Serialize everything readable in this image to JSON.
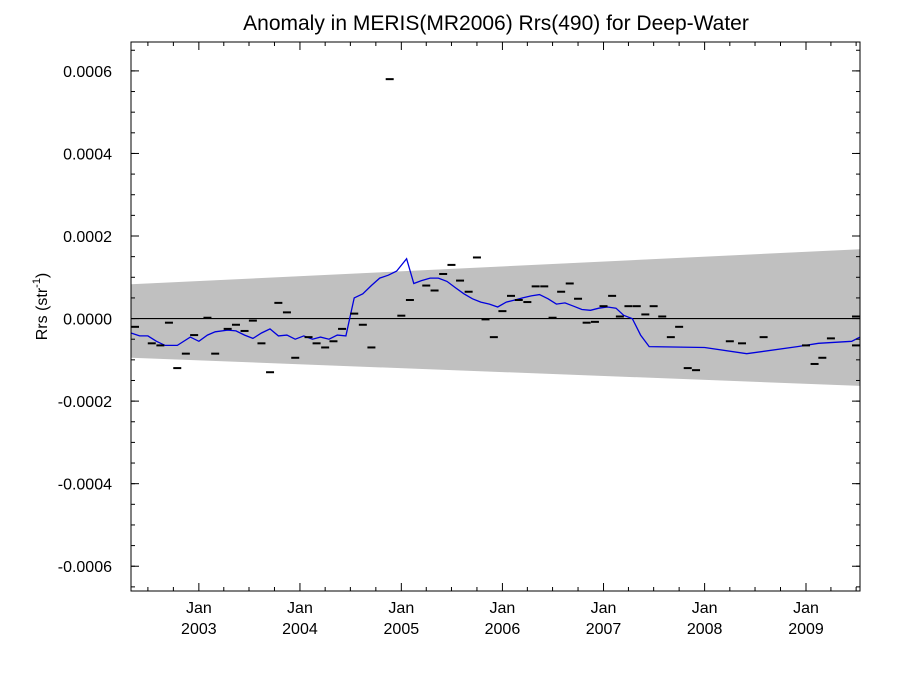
{
  "chart_data": {
    "type": "scatter",
    "title": "Anomaly in MERIS(MR2006) Rrs(490) for Deep-Water",
    "ylabel": {
      "main": "Rrs (str",
      "sup": "-1",
      "tail": ")"
    },
    "xlabel": "",
    "xlim": [
      "2002-05-01",
      "2009-07-15"
    ],
    "ylim": [
      -0.00066,
      0.00067
    ],
    "y_ticks": [
      -0.0006,
      -0.0004,
      -0.0002,
      0.0,
      0.0002,
      0.0004,
      0.0006
    ],
    "y_tick_labels": [
      "-0.0006",
      "-0.0004",
      "-0.0002",
      "0.0000",
      "0.0002",
      "0.0004",
      "0.0006"
    ],
    "x_ticks": [
      {
        "date": "2003-01-01",
        "month": "Jan",
        "year": "2003"
      },
      {
        "date": "2004-01-01",
        "month": "Jan",
        "year": "2004"
      },
      {
        "date": "2005-01-01",
        "month": "Jan",
        "year": "2005"
      },
      {
        "date": "2006-01-01",
        "month": "Jan",
        "year": "2006"
      },
      {
        "date": "2007-01-01",
        "month": "Jan",
        "year": "2007"
      },
      {
        "date": "2008-01-01",
        "month": "Jan",
        "year": "2008"
      },
      {
        "date": "2009-01-01",
        "month": "Jan",
        "year": "2009"
      }
    ],
    "x_minor_ticks_per_year": 4,
    "band": {
      "color": "#c0c0c0",
      "points": [
        {
          "x": "2002-05-01",
          "upper": 8.3e-05,
          "lower": -9.5e-05
        },
        {
          "x": "2009-07-15",
          "upper": 0.000168,
          "lower": -0.000163
        }
      ]
    },
    "zero_line": {
      "y": 0.0,
      "color": "#000000"
    },
    "series": [
      {
        "kind": "markers",
        "color": "#000000",
        "points": [
          {
            "x": "2002-05-01",
            "y": -2e-05
          },
          {
            "x": "2002-07-15",
            "y": -6e-05
          },
          {
            "x": "2002-08-15",
            "y": -6.5e-05
          },
          {
            "x": "2002-09-15",
            "y": -1e-05
          },
          {
            "x": "2002-10-15",
            "y": -0.00012
          },
          {
            "x": "2002-11-15",
            "y": -8.5e-05
          },
          {
            "x": "2002-12-15",
            "y": -4e-05
          },
          {
            "x": "2003-02-01",
            "y": 2e-06
          },
          {
            "x": "2003-03-01",
            "y": -8.5e-05
          },
          {
            "x": "2003-04-15",
            "y": -2.5e-05
          },
          {
            "x": "2003-05-15",
            "y": -1.5e-05
          },
          {
            "x": "2003-06-15",
            "y": -3e-05
          },
          {
            "x": "2003-07-15",
            "y": -5e-06
          },
          {
            "x": "2003-08-15",
            "y": -6e-05
          },
          {
            "x": "2003-09-15",
            "y": -0.00013
          },
          {
            "x": "2003-10-15",
            "y": 3.8e-05
          },
          {
            "x": "2003-11-15",
            "y": 1.5e-05
          },
          {
            "x": "2003-12-15",
            "y": -9.5e-05
          },
          {
            "x": "2004-02-01",
            "y": -4.5e-05
          },
          {
            "x": "2004-03-01",
            "y": -6e-05
          },
          {
            "x": "2004-04-01",
            "y": -7e-05
          },
          {
            "x": "2004-05-01",
            "y": -5.5e-05
          },
          {
            "x": "2004-06-01",
            "y": -2.5e-05
          },
          {
            "x": "2004-07-15",
            "y": 1.2e-05
          },
          {
            "x": "2004-08-15",
            "y": -1.5e-05
          },
          {
            "x": "2004-09-15",
            "y": -7e-05
          },
          {
            "x": "2004-11-20",
            "y": 0.00058
          },
          {
            "x": "2005-01-01",
            "y": 7e-06
          },
          {
            "x": "2005-02-01",
            "y": 4.5e-05
          },
          {
            "x": "2005-04-01",
            "y": 8e-05
          },
          {
            "x": "2005-05-01",
            "y": 6.8e-05
          },
          {
            "x": "2005-06-01",
            "y": 0.000108
          },
          {
            "x": "2005-07-01",
            "y": 0.00013
          },
          {
            "x": "2005-08-01",
            "y": 9.2e-05
          },
          {
            "x": "2005-09-01",
            "y": 6.5e-05
          },
          {
            "x": "2005-10-01",
            "y": 0.000148
          },
          {
            "x": "2005-11-01",
            "y": -2e-06
          },
          {
            "x": "2005-12-01",
            "y": -4.5e-05
          },
          {
            "x": "2006-01-01",
            "y": 1.8e-05
          },
          {
            "x": "2006-02-01",
            "y": 5.5e-05
          },
          {
            "x": "2006-03-01",
            "y": 4.5e-05
          },
          {
            "x": "2006-04-01",
            "y": 4e-05
          },
          {
            "x": "2006-05-01",
            "y": 7.8e-05
          },
          {
            "x": "2006-06-01",
            "y": 7.8e-05
          },
          {
            "x": "2006-07-01",
            "y": 2e-06
          },
          {
            "x": "2006-08-01",
            "y": 6.5e-05
          },
          {
            "x": "2006-09-01",
            "y": 8.5e-05
          },
          {
            "x": "2006-10-01",
            "y": 4.8e-05
          },
          {
            "x": "2006-11-01",
            "y": -1e-05
          },
          {
            "x": "2006-12-01",
            "y": -8e-06
          },
          {
            "x": "2007-01-01",
            "y": 3e-05
          },
          {
            "x": "2007-02-01",
            "y": 5.5e-05
          },
          {
            "x": "2007-03-01",
            "y": 5e-06
          },
          {
            "x": "2007-04-01",
            "y": 3e-05
          },
          {
            "x": "2007-05-01",
            "y": 3e-05
          },
          {
            "x": "2007-06-01",
            "y": 1e-05
          },
          {
            "x": "2007-07-01",
            "y": 3e-05
          },
          {
            "x": "2007-08-01",
            "y": 5e-06
          },
          {
            "x": "2007-09-01",
            "y": -4.5e-05
          },
          {
            "x": "2007-10-01",
            "y": -2e-05
          },
          {
            "x": "2007-11-01",
            "y": -0.00012
          },
          {
            "x": "2007-12-01",
            "y": -0.000125
          },
          {
            "x": "2008-04-01",
            "y": -5.5e-05
          },
          {
            "x": "2008-05-15",
            "y": -6e-05
          },
          {
            "x": "2008-08-01",
            "y": -4.5e-05
          },
          {
            "x": "2009-01-01",
            "y": -6.5e-05
          },
          {
            "x": "2009-02-01",
            "y": -0.00011
          },
          {
            "x": "2009-03-01",
            "y": -9.5e-05
          },
          {
            "x": "2009-04-01",
            "y": -4.8e-05
          },
          {
            "x": "2009-07-01",
            "y": 5e-06
          },
          {
            "x": "2009-07-15",
            "y": -6.5e-05
          }
        ]
      },
      {
        "kind": "line",
        "color": "#0000dd",
        "points": [
          {
            "x": "2002-05-01",
            "y": -3.5e-05
          },
          {
            "x": "2002-06-01",
            "y": -4.2e-05
          },
          {
            "x": "2002-07-01",
            "y": -4.2e-05
          },
          {
            "x": "2002-08-01",
            "y": -5.5e-05
          },
          {
            "x": "2002-09-01",
            "y": -6.5e-05
          },
          {
            "x": "2002-10-15",
            "y": -6.5e-05
          },
          {
            "x": "2002-12-01",
            "y": -4.5e-05
          },
          {
            "x": "2003-01-01",
            "y": -5.5e-05
          },
          {
            "x": "2003-02-01",
            "y": -4e-05
          },
          {
            "x": "2003-03-01",
            "y": -3.2e-05
          },
          {
            "x": "2003-04-15",
            "y": -2.8e-05
          },
          {
            "x": "2003-05-15",
            "y": -3e-05
          },
          {
            "x": "2003-06-15",
            "y": -4e-05
          },
          {
            "x": "2003-07-15",
            "y": -4.8e-05
          },
          {
            "x": "2003-08-15",
            "y": -3.5e-05
          },
          {
            "x": "2003-09-15",
            "y": -2.5e-05
          },
          {
            "x": "2003-10-15",
            "y": -4.2e-05
          },
          {
            "x": "2003-11-15",
            "y": -4e-05
          },
          {
            "x": "2003-12-15",
            "y": -5e-05
          },
          {
            "x": "2004-01-15",
            "y": -4.2e-05
          },
          {
            "x": "2004-02-15",
            "y": -5e-05
          },
          {
            "x": "2004-03-15",
            "y": -4.5e-05
          },
          {
            "x": "2004-04-15",
            "y": -5e-05
          },
          {
            "x": "2004-05-15",
            "y": -4e-05
          },
          {
            "x": "2004-06-15",
            "y": -4.2e-05
          },
          {
            "x": "2004-07-15",
            "y": 5e-05
          },
          {
            "x": "2004-08-15",
            "y": 6e-05
          },
          {
            "x": "2004-09-15",
            "y": 8e-05
          },
          {
            "x": "2004-10-15",
            "y": 9.8e-05
          },
          {
            "x": "2004-11-15",
            "y": 0.000105
          },
          {
            "x": "2004-12-15",
            "y": 0.000115
          },
          {
            "x": "2005-01-20",
            "y": 0.000145
          },
          {
            "x": "2005-02-15",
            "y": 8.5e-05
          },
          {
            "x": "2005-03-15",
            "y": 9.2e-05
          },
          {
            "x": "2005-04-15",
            "y": 9.8e-05
          },
          {
            "x": "2005-05-15",
            "y": 9.8e-05
          },
          {
            "x": "2005-06-15",
            "y": 9e-05
          },
          {
            "x": "2005-07-15",
            "y": 7.5e-05
          },
          {
            "x": "2005-08-15",
            "y": 6e-05
          },
          {
            "x": "2005-09-15",
            "y": 4.8e-05
          },
          {
            "x": "2005-10-15",
            "y": 4e-05
          },
          {
            "x": "2005-11-15",
            "y": 3.5e-05
          },
          {
            "x": "2005-12-15",
            "y": 2.8e-05
          },
          {
            "x": "2006-01-15",
            "y": 4e-05
          },
          {
            "x": "2006-02-15",
            "y": 4.5e-05
          },
          {
            "x": "2006-03-15",
            "y": 5e-05
          },
          {
            "x": "2006-04-15",
            "y": 5.5e-05
          },
          {
            "x": "2006-05-15",
            "y": 5.8e-05
          },
          {
            "x": "2006-06-15",
            "y": 4.8e-05
          },
          {
            "x": "2006-07-15",
            "y": 3.5e-05
          },
          {
            "x": "2006-08-15",
            "y": 3.8e-05
          },
          {
            "x": "2006-09-15",
            "y": 3e-05
          },
          {
            "x": "2006-10-15",
            "y": 2.2e-05
          },
          {
            "x": "2006-11-15",
            "y": 2e-05
          },
          {
            "x": "2006-12-15",
            "y": 2.5e-05
          },
          {
            "x": "2007-01-15",
            "y": 2.8e-05
          },
          {
            "x": "2007-02-15",
            "y": 2.5e-05
          },
          {
            "x": "2007-03-15",
            "y": 8e-06
          },
          {
            "x": "2007-04-15",
            "y": 0.0
          },
          {
            "x": "2007-05-15",
            "y": -4e-05
          },
          {
            "x": "2007-06-15",
            "y": -6.8e-05
          },
          {
            "x": "2008-01-01",
            "y": -7e-05
          },
          {
            "x": "2008-06-01",
            "y": -8.5e-05
          },
          {
            "x": "2008-12-01",
            "y": -6.8e-05
          },
          {
            "x": "2009-02-15",
            "y": -6e-05
          },
          {
            "x": "2009-06-15",
            "y": -5.5e-05
          },
          {
            "x": "2009-07-15",
            "y": -4.5e-05
          }
        ]
      }
    ]
  }
}
